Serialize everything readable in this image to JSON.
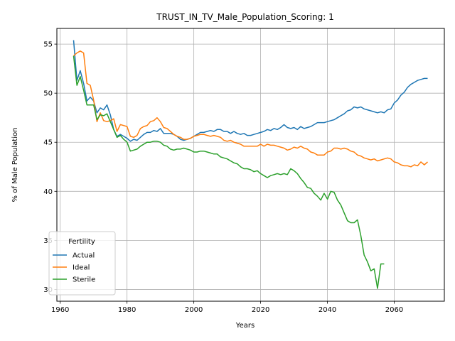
{
  "chart_data": {
    "type": "line",
    "title": "TRUST_IN_TV_Male_Population_Scoring: 1",
    "xlabel": "Years",
    "ylabel": "% of Male Population",
    "xlim": [
      1959,
      2075
    ],
    "ylim": [
      28.8,
      56.6
    ],
    "xticks": [
      1960,
      1980,
      2000,
      2020,
      2040,
      2060
    ],
    "yticks": [
      30,
      35,
      40,
      45,
      50,
      55
    ],
    "grid": true,
    "legend": {
      "title": "Fertility",
      "position": "lower-left"
    },
    "series": [
      {
        "name": "Actual",
        "color": "#1f77b4",
        "x": [
          1964,
          1965,
          1966,
          1967,
          1968,
          1969,
          1970,
          1971,
          1972,
          1973,
          1974,
          1975,
          1976,
          1977,
          1978,
          1979,
          1980,
          1981,
          1982,
          1983,
          1984,
          1985,
          1986,
          1987,
          1988,
          1989,
          1990,
          1991,
          1992,
          1993,
          1994,
          1995,
          1996,
          1997,
          1998,
          1999,
          2000,
          2001,
          2002,
          2003,
          2004,
          2005,
          2006,
          2007,
          2008,
          2009,
          2010,
          2011,
          2012,
          2013,
          2014,
          2015,
          2016,
          2017,
          2018,
          2019,
          2020,
          2021,
          2022,
          2023,
          2024,
          2025,
          2026,
          2027,
          2028,
          2029,
          2030,
          2031,
          2032,
          2033,
          2034,
          2035,
          2036,
          2037,
          2038,
          2039,
          2040,
          2041,
          2042,
          2043,
          2044,
          2045,
          2046,
          2047,
          2048,
          2049,
          2050,
          2051,
          2052,
          2053,
          2054,
          2055,
          2056,
          2057,
          2058,
          2059,
          2060,
          2061,
          2062,
          2063,
          2064,
          2065,
          2066,
          2067,
          2068,
          2069,
          2070
        ],
        "y": [
          55.4,
          51.3,
          52.3,
          51.0,
          49.2,
          49.6,
          49.2,
          48.0,
          48.5,
          48.3,
          48.8,
          47.8,
          46.3,
          45.6,
          45.8,
          45.6,
          45.4,
          45.1,
          45.3,
          45.2,
          45.5,
          45.8,
          46.0,
          46.0,
          46.2,
          46.1,
          46.4,
          45.9,
          45.9,
          45.9,
          45.8,
          45.6,
          45.3,
          45.2,
          45.3,
          45.4,
          45.6,
          45.8,
          46.0,
          46.0,
          46.1,
          46.2,
          46.1,
          46.3,
          46.3,
          46.1,
          46.1,
          45.9,
          46.1,
          45.9,
          45.8,
          45.9,
          45.7,
          45.7,
          45.8,
          45.9,
          46.0,
          46.1,
          46.3,
          46.2,
          46.4,
          46.3,
          46.5,
          46.8,
          46.5,
          46.4,
          46.5,
          46.3,
          46.6,
          46.4,
          46.5,
          46.6,
          46.8,
          47.0,
          47.0,
          47.0,
          47.1,
          47.2,
          47.3,
          47.5,
          47.7,
          47.9,
          48.2,
          48.3,
          48.6,
          48.5,
          48.6,
          48.4,
          48.3,
          48.2,
          48.1,
          48.0,
          48.1,
          48.0,
          48.3,
          48.4,
          49.0,
          49.3,
          49.8,
          50.1,
          50.6,
          50.9,
          51.1,
          51.3,
          51.4,
          51.5,
          51.5
        ]
      },
      {
        "name": "Ideal",
        "color": "#ff7f0e",
        "x": [
          1964,
          1965,
          1966,
          1967,
          1968,
          1969,
          1970,
          1971,
          1972,
          1973,
          1974,
          1975,
          1976,
          1977,
          1978,
          1979,
          1980,
          1981,
          1982,
          1983,
          1984,
          1985,
          1986,
          1987,
          1988,
          1989,
          1990,
          1991,
          1992,
          1993,
          1994,
          1995,
          1996,
          1997,
          1998,
          1999,
          2000,
          2001,
          2002,
          2003,
          2004,
          2005,
          2006,
          2007,
          2008,
          2009,
          2010,
          2011,
          2012,
          2013,
          2014,
          2015,
          2016,
          2017,
          2018,
          2019,
          2020,
          2021,
          2022,
          2023,
          2024,
          2025,
          2026,
          2027,
          2028,
          2029,
          2030,
          2031,
          2032,
          2033,
          2034,
          2035,
          2036,
          2037,
          2038,
          2039,
          2040,
          2041,
          2042,
          2043,
          2044,
          2045,
          2046,
          2047,
          2048,
          2049,
          2050,
          2051,
          2052,
          2053,
          2054,
          2055,
          2056,
          2057,
          2058,
          2059,
          2060,
          2061,
          2062,
          2063,
          2064,
          2065,
          2066,
          2067,
          2068,
          2069,
          2070
        ],
        "y": [
          53.8,
          54.1,
          54.3,
          54.1,
          51.0,
          50.8,
          49.3,
          47.1,
          48.0,
          47.2,
          47.1,
          47.2,
          47.4,
          46.1,
          46.8,
          46.7,
          46.6,
          45.6,
          45.5,
          45.7,
          46.4,
          46.6,
          46.7,
          47.1,
          47.2,
          47.5,
          47.1,
          46.5,
          46.4,
          46.1,
          45.8,
          45.6,
          45.5,
          45.3,
          45.3,
          45.4,
          45.6,
          45.7,
          45.8,
          45.8,
          45.7,
          45.6,
          45.7,
          45.6,
          45.5,
          45.2,
          45.1,
          45.2,
          45.0,
          44.9,
          44.8,
          44.6,
          44.6,
          44.6,
          44.6,
          44.6,
          44.8,
          44.6,
          44.8,
          44.7,
          44.7,
          44.6,
          44.5,
          44.4,
          44.2,
          44.3,
          44.5,
          44.4,
          44.6,
          44.4,
          44.3,
          44.0,
          43.9,
          43.7,
          43.7,
          43.7,
          44.0,
          44.1,
          44.4,
          44.4,
          44.3,
          44.4,
          44.3,
          44.1,
          44.0,
          43.7,
          43.6,
          43.4,
          43.3,
          43.2,
          43.3,
          43.1,
          43.2,
          43.3,
          43.4,
          43.3,
          43.0,
          42.9,
          42.7,
          42.6,
          42.6,
          42.5,
          42.7,
          42.6,
          43.0,
          42.7,
          43.0
        ]
      },
      {
        "name": "Sterile",
        "color": "#2ca02c",
        "x": [
          1964,
          1965,
          1966,
          1967,
          1968,
          1969,
          1970,
          1971,
          1972,
          1973,
          1974,
          1975,
          1976,
          1977,
          1978,
          1979,
          1980,
          1981,
          1982,
          1983,
          1984,
          1985,
          1986,
          1987,
          1988,
          1989,
          1990,
          1991,
          1992,
          1993,
          1994,
          1995,
          1996,
          1997,
          1998,
          1999,
          2000,
          2001,
          2002,
          2003,
          2004,
          2005,
          2006,
          2007,
          2008,
          2009,
          2010,
          2011,
          2012,
          2013,
          2014,
          2015,
          2016,
          2017,
          2018,
          2019,
          2020,
          2021,
          2022,
          2023,
          2024,
          2025,
          2026,
          2027,
          2028,
          2029,
          2030,
          2031,
          2032,
          2033,
          2034,
          2035,
          2036,
          2037,
          2038,
          2039,
          2040,
          2041,
          2042,
          2043,
          2044,
          2045,
          2046,
          2047,
          2048,
          2049,
          2050,
          2051,
          2052,
          2053,
          2054,
          2055,
          2056,
          2057
        ],
        "y": [
          53.8,
          50.8,
          51.7,
          50.3,
          48.8,
          48.8,
          48.8,
          47.3,
          47.8,
          47.7,
          47.9,
          47.1,
          46.3,
          45.5,
          45.7,
          45.3,
          45.0,
          44.1,
          44.2,
          44.3,
          44.6,
          44.8,
          45.0,
          45.0,
          45.1,
          45.1,
          45.0,
          44.7,
          44.6,
          44.3,
          44.2,
          44.3,
          44.3,
          44.4,
          44.3,
          44.2,
          44.0,
          44.0,
          44.1,
          44.1,
          44.0,
          43.9,
          43.8,
          43.8,
          43.5,
          43.4,
          43.3,
          43.1,
          42.9,
          42.8,
          42.5,
          42.3,
          42.3,
          42.2,
          42.0,
          42.1,
          41.8,
          41.6,
          41.4,
          41.6,
          41.7,
          41.8,
          41.7,
          41.8,
          41.7,
          42.3,
          42.1,
          41.8,
          41.3,
          40.9,
          40.4,
          40.3,
          39.8,
          39.5,
          39.1,
          39.8,
          39.2,
          40.0,
          39.9,
          39.1,
          38.6,
          37.8,
          37.0,
          36.8,
          36.8,
          37.1,
          35.5,
          33.5,
          32.8,
          31.9,
          32.1,
          30.1,
          32.6,
          32.6
        ]
      }
    ]
  }
}
